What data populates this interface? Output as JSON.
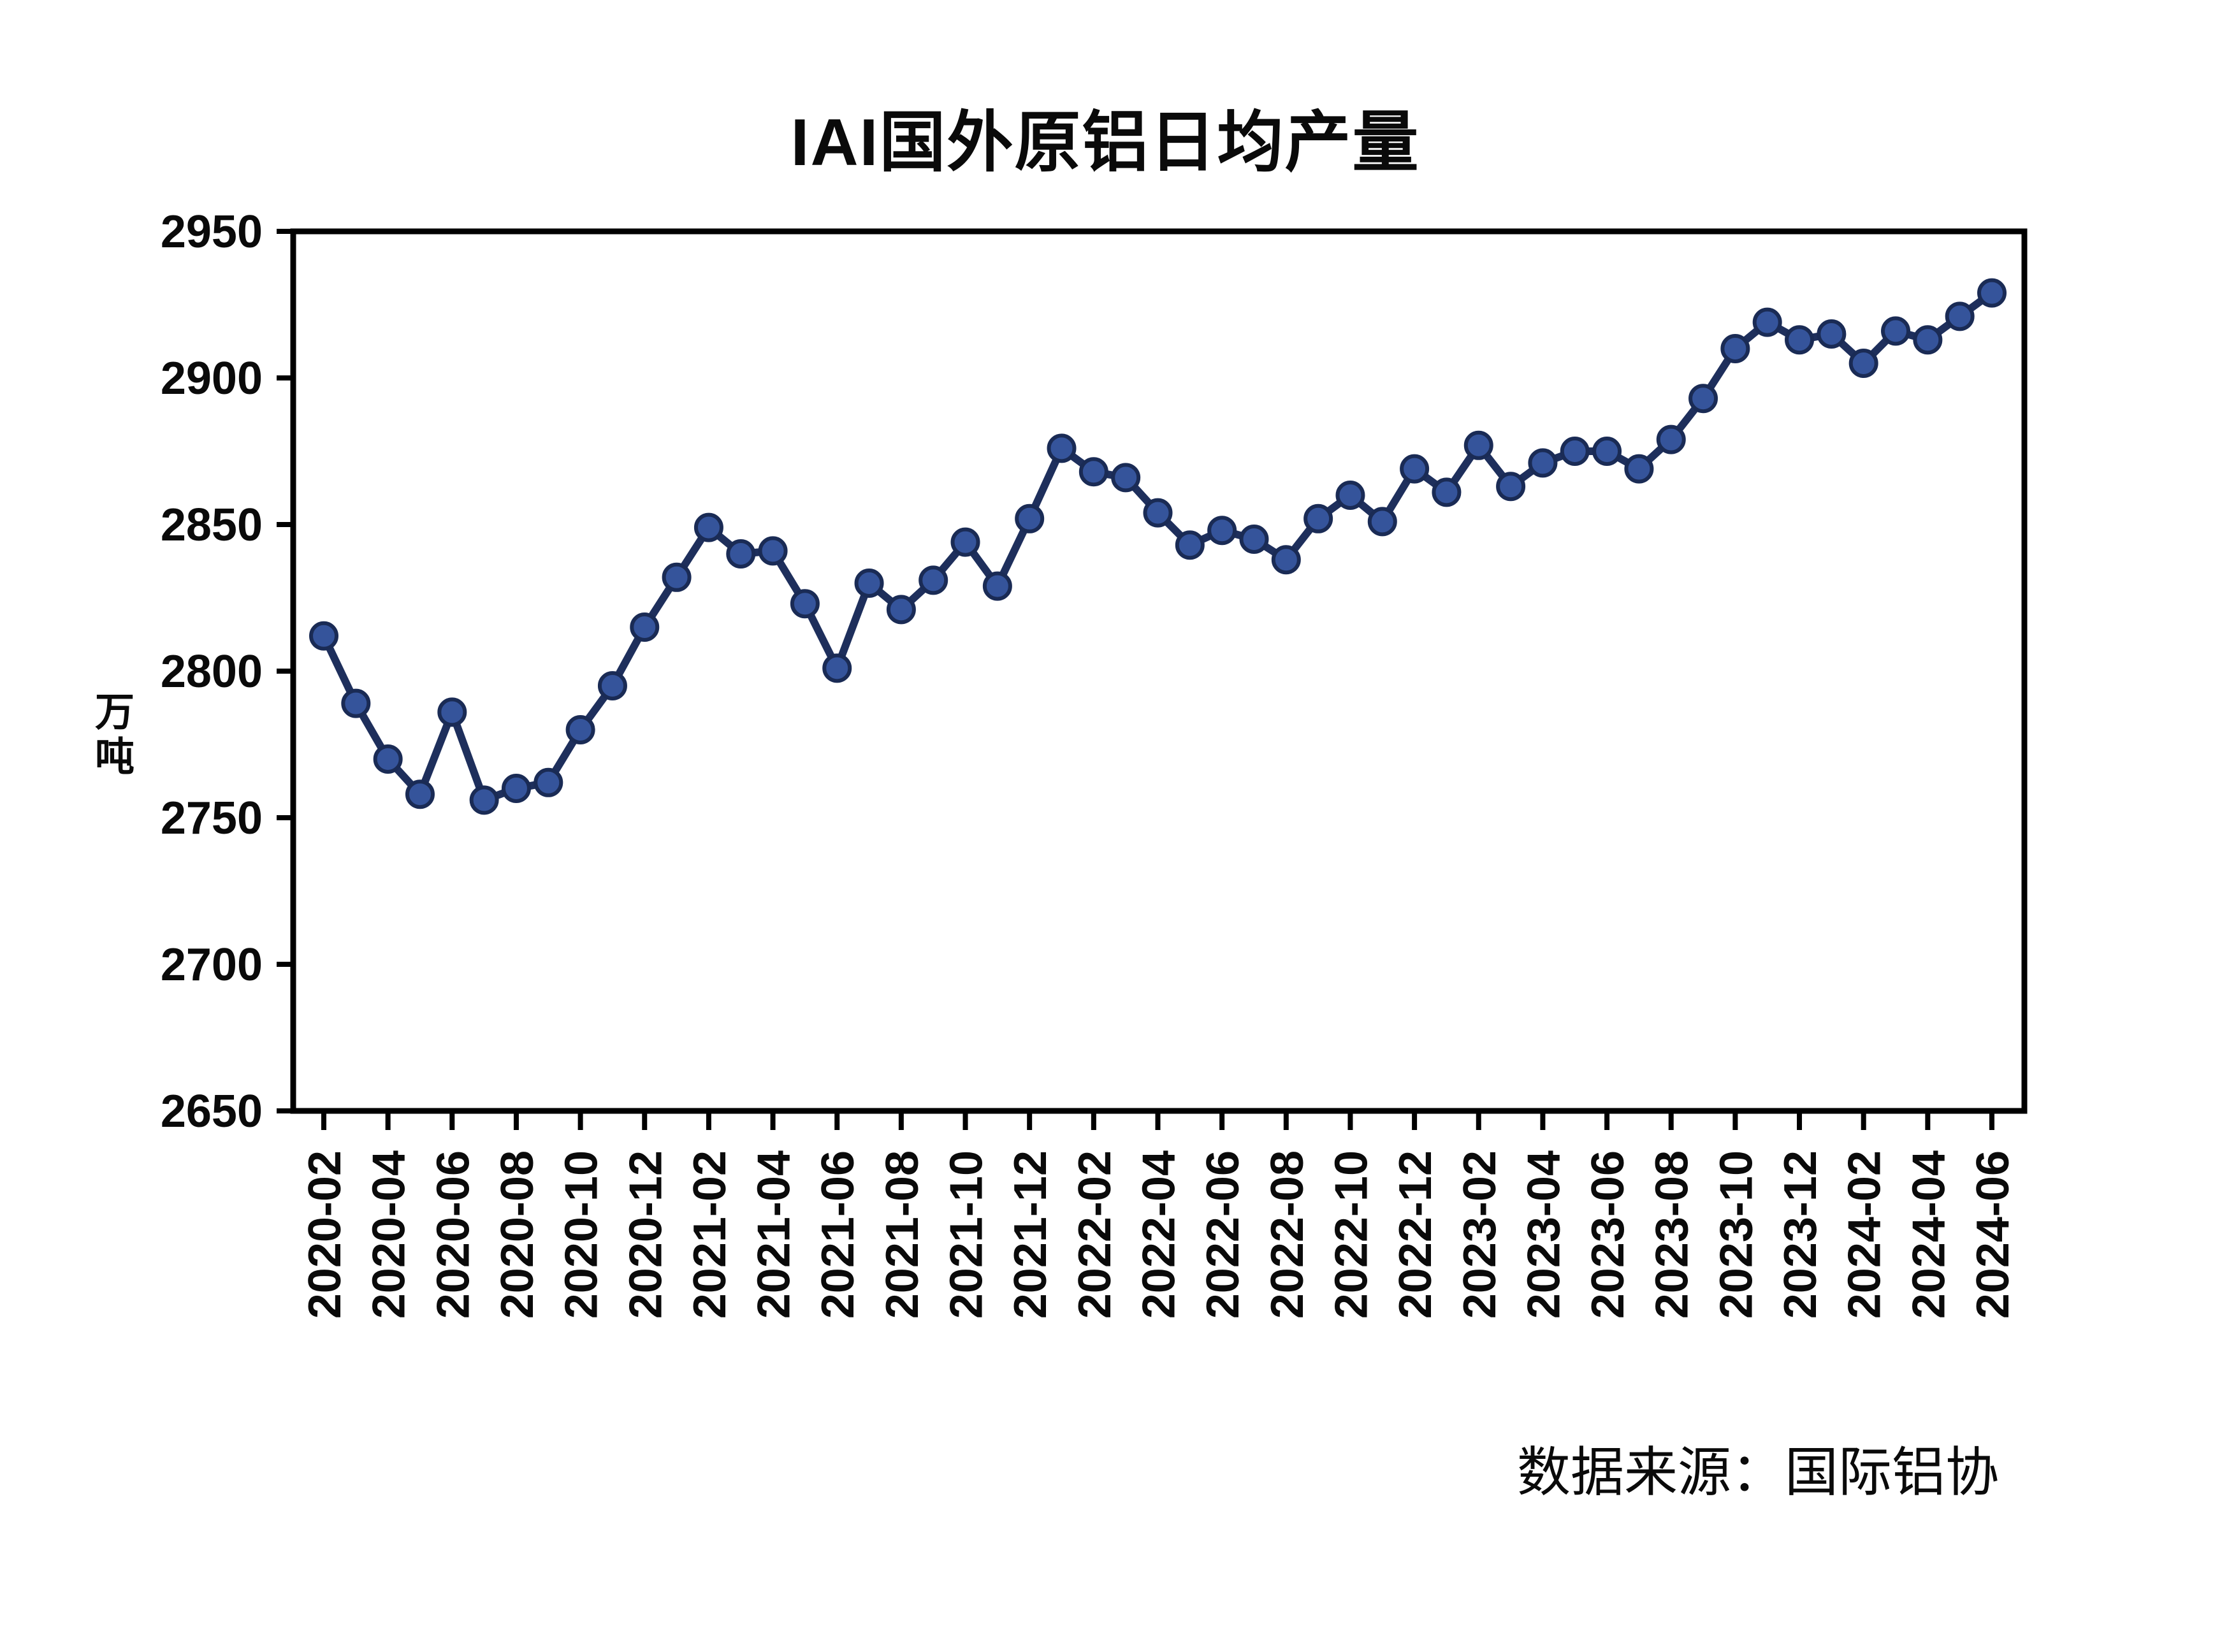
{
  "chart_data": {
    "type": "line",
    "title": "IAI国外原铝日均产量",
    "ylabel": "万吨",
    "source_note": "数据来源：国际铝协",
    "x": [
      "2020-02",
      "2020-03",
      "2020-04",
      "2020-05",
      "2020-06",
      "2020-07",
      "2020-08",
      "2020-09",
      "2020-10",
      "2020-11",
      "2020-12",
      "2021-01",
      "2021-02",
      "2021-03",
      "2021-04",
      "2021-05",
      "2021-06",
      "2021-07",
      "2021-08",
      "2021-09",
      "2021-10",
      "2021-11",
      "2021-12",
      "2022-01",
      "2022-02",
      "2022-03",
      "2022-04",
      "2022-05",
      "2022-06",
      "2022-07",
      "2022-08",
      "2022-09",
      "2022-10",
      "2022-11",
      "2022-12",
      "2023-01",
      "2023-02",
      "2023-03",
      "2023-04",
      "2023-05",
      "2023-06",
      "2023-07",
      "2023-08",
      "2023-09",
      "2023-10",
      "2023-11",
      "2023-12",
      "2024-01",
      "2024-02",
      "2024-03",
      "2024-04",
      "2024-05",
      "2024-06"
    ],
    "values": [
      2812,
      2789,
      2770,
      2758,
      2786,
      2756,
      2760,
      2762,
      2780,
      2795,
      2815,
      2832,
      2849,
      2840,
      2841,
      2823,
      2801,
      2830,
      2821,
      2831,
      2844,
      2829,
      2852,
      2876,
      2868,
      2866,
      2854,
      2843,
      2848,
      2845,
      2838,
      2852,
      2860,
      2851,
      2869,
      2861,
      2877,
      2863,
      2871,
      2875,
      2875,
      2869,
      2879,
      2893,
      2910,
      2919,
      2913,
      2915,
      2905,
      2916,
      2913,
      2921,
      2929
    ],
    "xtick_every": 2,
    "ylim": [
      2650,
      2950
    ],
    "yticks": [
      2650,
      2700,
      2750,
      2800,
      2850,
      2900,
      2950
    ],
    "grid": false,
    "line_color": "#1e2f5c",
    "marker_color": "#35549b",
    "marker_edge_color": "#1a2b55",
    "axis_color": "#000000",
    "text_color": "#0a0a0a"
  }
}
